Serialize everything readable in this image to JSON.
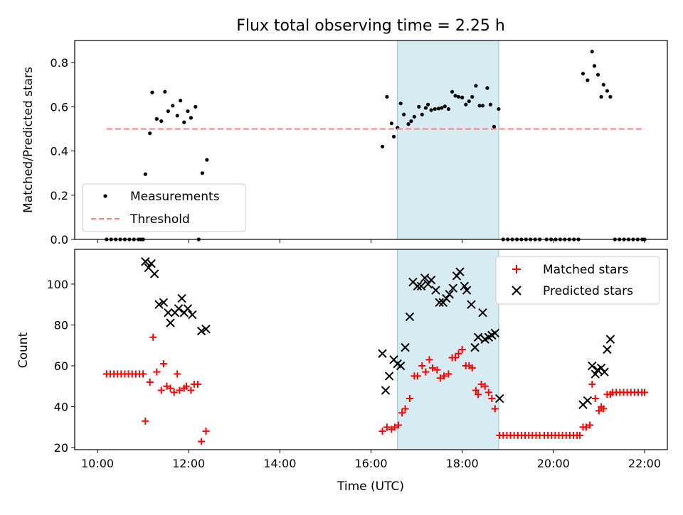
{
  "chart_data": [
    {
      "type": "scatter",
      "title": "Flux total observing time = 2.25 h",
      "xlabel": "",
      "ylabel": "Matched/Predicted stars",
      "x_unit": "hours UTC",
      "xlim": [
        9.5,
        22.5
      ],
      "ylim": [
        0,
        0.9
      ],
      "yticks": [
        0.0,
        0.2,
        0.4,
        0.6,
        0.8
      ],
      "ytick_labels": [
        "0.0",
        "0.2",
        "0.4",
        "0.6",
        "0.8"
      ],
      "xtick_values": [
        10,
        12,
        14,
        16,
        18,
        20,
        22
      ],
      "shaded_span": [
        16.58,
        18.8
      ],
      "shaded_color": "#add8e6",
      "series": [
        {
          "name": "Measurements",
          "marker": "dot",
          "color": "#000000",
          "points": [
            [
              10.2,
              0
            ],
            [
              10.3,
              0
            ],
            [
              10.4,
              0
            ],
            [
              10.5,
              0
            ],
            [
              10.6,
              0
            ],
            [
              10.7,
              0
            ],
            [
              10.8,
              0
            ],
            [
              10.9,
              0
            ],
            [
              10.95,
              0
            ],
            [
              11.0,
              0
            ],
            [
              11.05,
              0.295
            ],
            [
              11.15,
              0.48
            ],
            [
              11.2,
              0.665
            ],
            [
              11.3,
              0.545
            ],
            [
              11.4,
              0.535
            ],
            [
              11.48,
              0.668
            ],
            [
              11.55,
              0.58
            ],
            [
              11.65,
              0.605
            ],
            [
              11.75,
              0.56
            ],
            [
              11.82,
              0.628
            ],
            [
              11.9,
              0.53
            ],
            [
              11.98,
              0.58
            ],
            [
              12.05,
              0.55
            ],
            [
              12.15,
              0.6
            ],
            [
              12.22,
              0
            ],
            [
              12.3,
              0.3
            ],
            [
              12.4,
              0.36
            ],
            [
              16.25,
              0.42
            ],
            [
              16.35,
              0.645
            ],
            [
              16.45,
              0.525
            ],
            [
              16.5,
              0.465
            ],
            [
              16.58,
              0.505
            ],
            [
              16.65,
              0.615
            ],
            [
              16.72,
              0.565
            ],
            [
              16.82,
              0.522
            ],
            [
              16.88,
              0.535
            ],
            [
              16.95,
              0.555
            ],
            [
              17.05,
              0.6
            ],
            [
              17.12,
              0.565
            ],
            [
              17.2,
              0.595
            ],
            [
              17.25,
              0.61
            ],
            [
              17.32,
              0.585
            ],
            [
              17.4,
              0.59
            ],
            [
              17.48,
              0.592
            ],
            [
              17.55,
              0.595
            ],
            [
              17.62,
              0.602
            ],
            [
              17.7,
              0.59
            ],
            [
              17.78,
              0.668
            ],
            [
              17.85,
              0.65
            ],
            [
              17.92,
              0.645
            ],
            [
              18.0,
              0.642
            ],
            [
              18.08,
              0.61
            ],
            [
              18.15,
              0.625
            ],
            [
              18.22,
              0.645
            ],
            [
              18.3,
              0.695
            ],
            [
              18.38,
              0.605
            ],
            [
              18.45,
              0.605
            ],
            [
              18.55,
              0.685
            ],
            [
              18.62,
              0.61
            ],
            [
              18.7,
              0.51
            ],
            [
              18.8,
              0.59
            ],
            [
              18.9,
              0
            ],
            [
              19.0,
              0
            ],
            [
              19.1,
              0
            ],
            [
              19.2,
              0
            ],
            [
              19.3,
              0
            ],
            [
              19.4,
              0
            ],
            [
              19.5,
              0
            ],
            [
              19.6,
              0
            ],
            [
              19.7,
              0
            ],
            [
              19.85,
              0
            ],
            [
              19.95,
              0
            ],
            [
              20.05,
              0
            ],
            [
              20.15,
              0
            ],
            [
              20.25,
              0
            ],
            [
              20.35,
              0
            ],
            [
              20.45,
              0
            ],
            [
              20.55,
              0
            ],
            [
              20.65,
              0.75
            ],
            [
              20.75,
              0.72
            ],
            [
              20.85,
              0.85
            ],
            [
              20.9,
              0.785
            ],
            [
              20.98,
              0.745
            ],
            [
              21.05,
              0.645
            ],
            [
              21.1,
              0.7
            ],
            [
              21.18,
              0.672
            ],
            [
              21.25,
              0.645
            ],
            [
              21.35,
              0
            ],
            [
              21.45,
              0
            ],
            [
              21.55,
              0
            ],
            [
              21.65,
              0
            ],
            [
              21.75,
              0
            ],
            [
              21.85,
              0
            ],
            [
              21.95,
              0
            ],
            [
              22.0,
              0
            ]
          ]
        },
        {
          "name": "Threshold",
          "marker": "dashed-line",
          "color": "#ff7f7f",
          "points": [
            [
              10.2,
              0.5
            ],
            [
              22.0,
              0.5
            ]
          ]
        }
      ],
      "legend": "lower-left"
    },
    {
      "type": "scatter",
      "title": "",
      "xlabel": "Time (UTC)",
      "ylabel": "Count",
      "x_unit": "hours UTC",
      "xlim": [
        9.5,
        22.5
      ],
      "ylim": [
        19,
        117
      ],
      "yticks": [
        20,
        40,
        60,
        80,
        100
      ],
      "ytick_labels": [
        "20",
        "40",
        "60",
        "80",
        "100"
      ],
      "xtick_values": [
        10,
        12,
        14,
        16,
        18,
        20,
        22
      ],
      "xtick_labels": [
        "10:00",
        "12:00",
        "14:00",
        "16:00",
        "18:00",
        "20:00",
        "22:00"
      ],
      "shaded_span": [
        16.58,
        18.8
      ],
      "shaded_color": "#add8e6",
      "series": [
        {
          "name": "Matched stars",
          "marker": "plus",
          "color": "#ff0000",
          "points": [
            [
              10.2,
              56
            ],
            [
              10.28,
              56
            ],
            [
              10.36,
              56
            ],
            [
              10.44,
              56
            ],
            [
              10.52,
              56
            ],
            [
              10.6,
              56
            ],
            [
              10.68,
              56
            ],
            [
              10.76,
              56
            ],
            [
              10.84,
              56
            ],
            [
              10.92,
              56
            ],
            [
              11.0,
              56
            ],
            [
              11.05,
              33
            ],
            [
              11.15,
              52
            ],
            [
              11.22,
              74
            ],
            [
              11.3,
              57
            ],
            [
              11.4,
              48
            ],
            [
              11.45,
              61
            ],
            [
              11.52,
              50
            ],
            [
              11.6,
              49
            ],
            [
              11.68,
              47
            ],
            [
              11.75,
              56
            ],
            [
              11.8,
              48
            ],
            [
              11.9,
              49
            ],
            [
              11.95,
              50
            ],
            [
              12.05,
              48
            ],
            [
              12.12,
              51
            ],
            [
              12.2,
              51
            ],
            [
              12.28,
              23
            ],
            [
              12.38,
              28
            ],
            [
              16.25,
              28
            ],
            [
              16.35,
              30
            ],
            [
              16.45,
              29
            ],
            [
              16.52,
              30
            ],
            [
              16.6,
              31
            ],
            [
              16.68,
              37
            ],
            [
              16.75,
              39
            ],
            [
              16.85,
              44
            ],
            [
              16.95,
              55
            ],
            [
              17.02,
              55
            ],
            [
              17.12,
              60
            ],
            [
              17.2,
              57
            ],
            [
              17.28,
              63
            ],
            [
              17.35,
              59
            ],
            [
              17.45,
              58
            ],
            [
              17.52,
              54
            ],
            [
              17.6,
              55
            ],
            [
              17.7,
              56
            ],
            [
              17.78,
              64
            ],
            [
              17.85,
              64
            ],
            [
              17.92,
              66
            ],
            [
              18.0,
              68
            ],
            [
              18.08,
              60
            ],
            [
              18.15,
              60
            ],
            [
              18.22,
              59
            ],
            [
              18.3,
              48
            ],
            [
              18.35,
              46
            ],
            [
              18.42,
              51
            ],
            [
              18.5,
              50
            ],
            [
              18.58,
              47
            ],
            [
              18.65,
              44
            ],
            [
              18.72,
              39
            ],
            [
              18.82,
              26
            ],
            [
              18.9,
              26
            ],
            [
              18.98,
              26
            ],
            [
              19.06,
              26
            ],
            [
              19.14,
              26
            ],
            [
              19.22,
              26
            ],
            [
              19.3,
              26
            ],
            [
              19.38,
              26
            ],
            [
              19.46,
              26
            ],
            [
              19.54,
              26
            ],
            [
              19.62,
              26
            ],
            [
              19.7,
              26
            ],
            [
              19.8,
              26
            ],
            [
              19.88,
              26
            ],
            [
              19.96,
              26
            ],
            [
              20.04,
              26
            ],
            [
              20.12,
              26
            ],
            [
              20.2,
              26
            ],
            [
              20.28,
              26
            ],
            [
              20.36,
              26
            ],
            [
              20.44,
              26
            ],
            [
              20.52,
              26
            ],
            [
              20.58,
              26
            ],
            [
              20.65,
              30
            ],
            [
              20.72,
              30
            ],
            [
              20.8,
              31
            ],
            [
              20.85,
              51
            ],
            [
              20.92,
              44
            ],
            [
              21.0,
              38
            ],
            [
              21.05,
              40
            ],
            [
              21.1,
              39
            ],
            [
              21.18,
              46
            ],
            [
              21.25,
              46
            ],
            [
              21.3,
              47
            ],
            [
              21.38,
              47
            ],
            [
              21.46,
              47
            ],
            [
              21.54,
              47
            ],
            [
              21.62,
              47
            ],
            [
              21.7,
              47
            ],
            [
              21.78,
              47
            ],
            [
              21.86,
              47
            ],
            [
              21.94,
              47
            ],
            [
              22.0,
              47
            ]
          ]
        },
        {
          "name": "Predicted stars",
          "marker": "x",
          "color": "#000000",
          "points": [
            [
              11.05,
              111
            ],
            [
              11.12,
              108
            ],
            [
              11.18,
              110
            ],
            [
              11.25,
              105
            ],
            [
              11.35,
              90
            ],
            [
              11.45,
              91
            ],
            [
              11.55,
              86
            ],
            [
              11.6,
              81
            ],
            [
              11.7,
              86
            ],
            [
              11.78,
              88
            ],
            [
              11.85,
              93
            ],
            [
              11.9,
              86
            ],
            [
              11.98,
              88
            ],
            [
              12.08,
              85
            ],
            [
              12.28,
              77
            ],
            [
              12.38,
              78
            ],
            [
              16.25,
              66
            ],
            [
              16.32,
              48
            ],
            [
              16.4,
              55
            ],
            [
              16.5,
              63
            ],
            [
              16.58,
              61
            ],
            [
              16.65,
              60
            ],
            [
              16.75,
              69
            ],
            [
              16.85,
              84
            ],
            [
              16.92,
              101
            ],
            [
              17.02,
              99
            ],
            [
              17.1,
              99
            ],
            [
              17.18,
              103
            ],
            [
              17.25,
              100
            ],
            [
              17.32,
              102
            ],
            [
              17.42,
              97
            ],
            [
              17.5,
              91
            ],
            [
              17.58,
              91
            ],
            [
              17.65,
              93
            ],
            [
              17.72,
              95
            ],
            [
              17.8,
              98
            ],
            [
              17.88,
              104
            ],
            [
              17.95,
              106
            ],
            [
              18.05,
              99
            ],
            [
              18.1,
              97
            ],
            [
              18.2,
              90
            ],
            [
              18.28,
              69
            ],
            [
              18.35,
              74
            ],
            [
              18.45,
              86
            ],
            [
              18.5,
              73
            ],
            [
              18.58,
              74
            ],
            [
              18.65,
              75
            ],
            [
              18.72,
              76
            ],
            [
              18.82,
              44
            ],
            [
              20.65,
              41
            ],
            [
              20.75,
              43
            ],
            [
              20.85,
              60
            ],
            [
              20.92,
              56
            ],
            [
              20.97,
              58
            ],
            [
              21.05,
              59
            ],
            [
              21.12,
              57
            ],
            [
              21.18,
              68
            ],
            [
              21.25,
              73
            ]
          ]
        }
      ],
      "legend": "upper-right"
    }
  ]
}
